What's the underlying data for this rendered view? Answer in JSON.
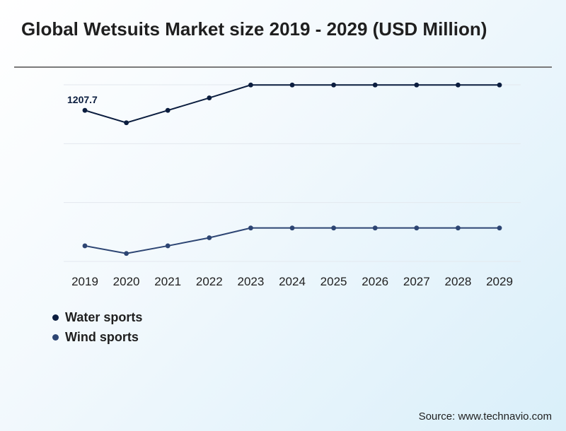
{
  "title": "Global Wetsuits Market size 2019 - 2029 (USD Million)",
  "source": "Source: www.technavio.com",
  "colors": {
    "water_sports": "#0b1d3f",
    "wind_sports": "#2d4573",
    "grid": "#e3e8ee"
  },
  "chart_data": {
    "type": "line",
    "title": "Global Wetsuits Market size 2019 - 2029 (USD Million)",
    "categories": [
      "2019",
      "2020",
      "2021",
      "2022",
      "2023",
      "2024",
      "2025",
      "2026",
      "2027",
      "2028",
      "2029"
    ],
    "series": [
      {
        "name": "Water sports",
        "values": [
          1207.7,
          1121.8,
          1207.7,
          1294.1,
          1383.6,
          1383.6,
          1383.6,
          1383.6,
          1383.6,
          1383.6,
          1383.6
        ]
      },
      {
        "name": "Wind sports",
        "values": [
          268.1,
          215.1,
          268.1,
          324.1,
          391.9,
          391.9,
          391.9,
          391.9,
          391.9,
          391.9,
          391.9
        ]
      }
    ],
    "data_labels": [
      {
        "series": 0,
        "index": 0,
        "text": "1207.7"
      }
    ],
    "ylim": [
      160,
      1385
    ],
    "grid": true,
    "legend": "bottom-left"
  }
}
